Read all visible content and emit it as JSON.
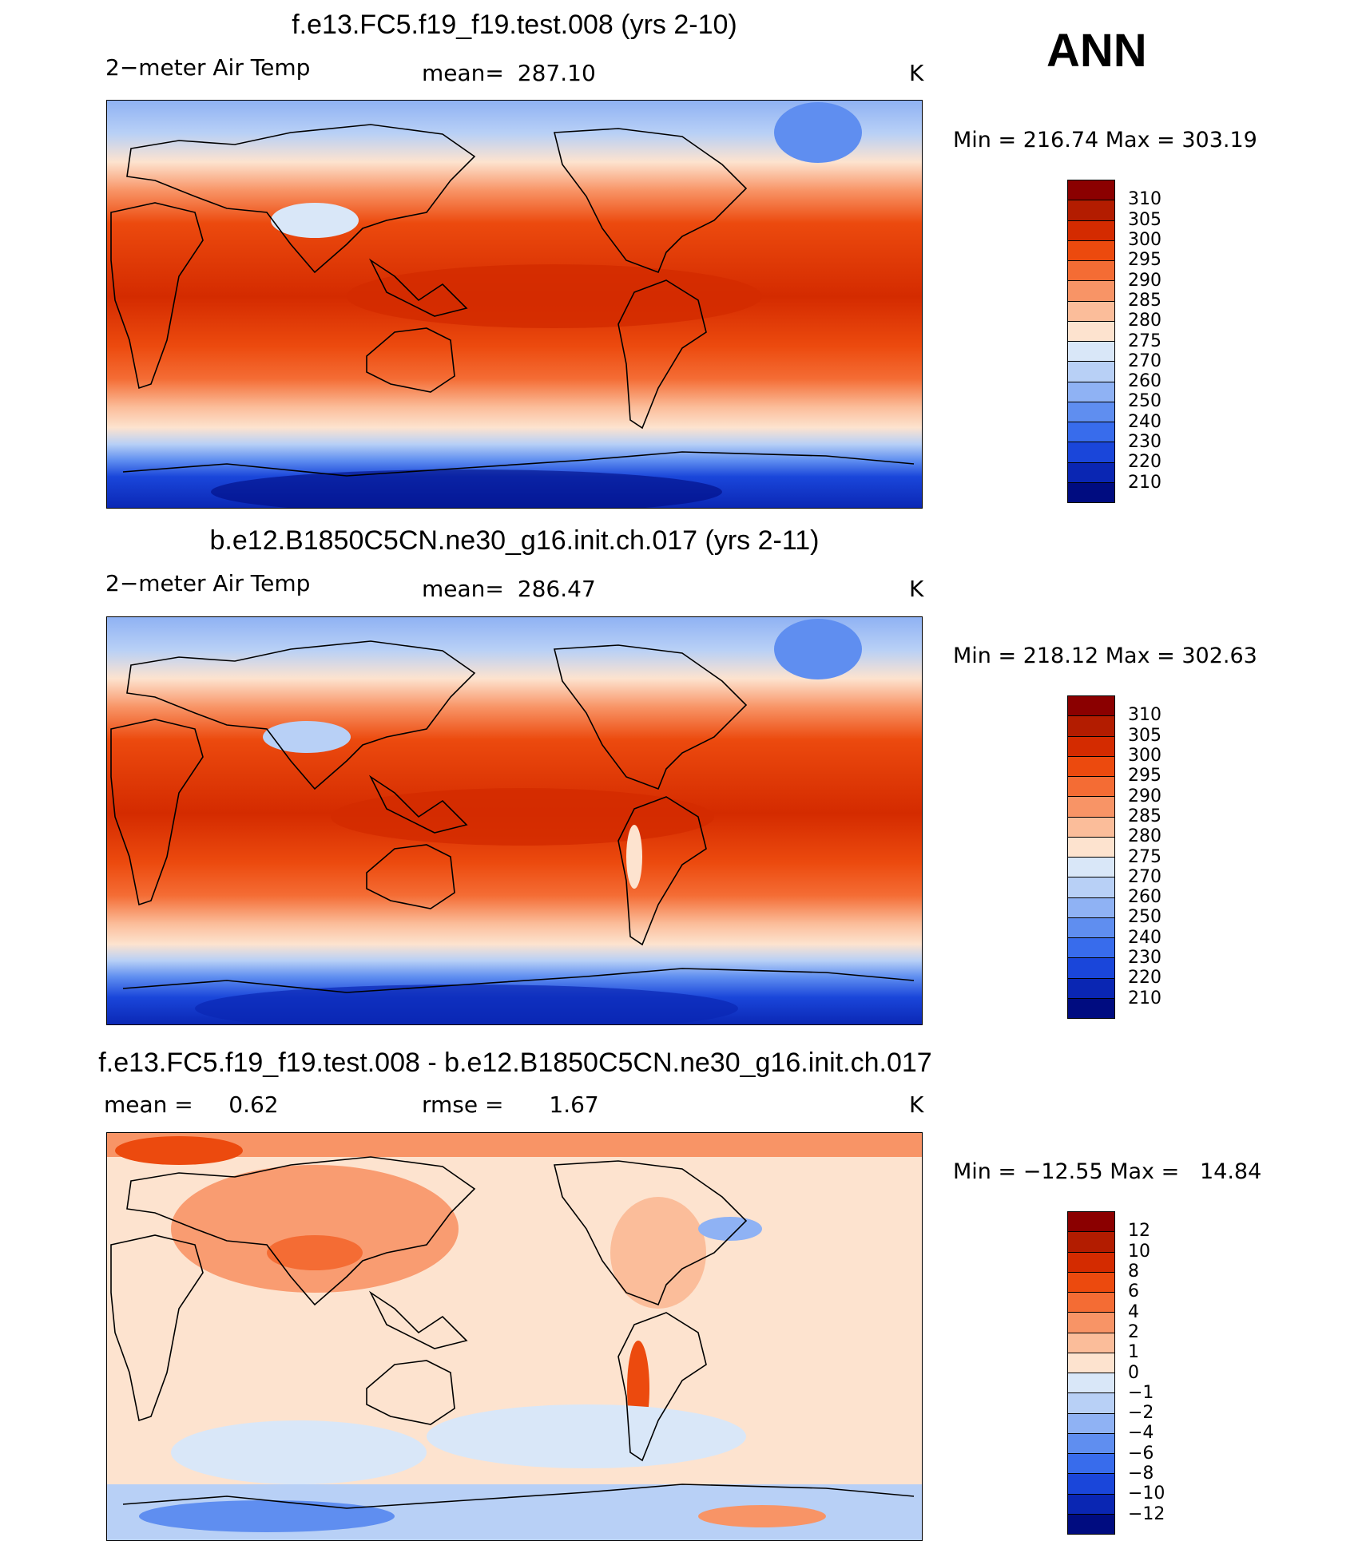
{
  "season": "ANN",
  "unit": "K",
  "panels": [
    {
      "title": "f.e13.FC5.f19_f19.test.008 (yrs 2-10)",
      "left_label": "2−meter Air Temp",
      "stat_label": "mean=",
      "stat_value": "287.10",
      "unit": "K",
      "minmax": "Min = 216.74 Max = 303.19",
      "levels": [
        "310",
        "305",
        "300",
        "295",
        "290",
        "285",
        "280",
        "275",
        "270",
        "260",
        "250",
        "240",
        "230",
        "220",
        "210"
      ],
      "colors": [
        "#8b0000",
        "#b31c00",
        "#d42b00",
        "#ec4a0e",
        "#f46c34",
        "#f89466",
        "#fbbd9a",
        "#fde3cf",
        "#d9e7f8",
        "#b8d0f6",
        "#8fb2f4",
        "#5f8ef0",
        "#386cec",
        "#1a46da",
        "#0a26b3",
        "#000c80"
      ]
    },
    {
      "title": "b.e12.B1850C5CN.ne30_g16.init.ch.017 (yrs 2-11)",
      "left_label": "2−meter Air Temp",
      "stat_label": "mean=",
      "stat_value": "286.47",
      "unit": "K",
      "minmax": "Min = 218.12 Max = 302.63",
      "levels": [
        "310",
        "305",
        "300",
        "295",
        "290",
        "285",
        "280",
        "275",
        "270",
        "260",
        "250",
        "240",
        "230",
        "220",
        "210"
      ],
      "colors": [
        "#8b0000",
        "#b31c00",
        "#d42b00",
        "#ec4a0e",
        "#f46c34",
        "#f89466",
        "#fbbd9a",
        "#fde3cf",
        "#d9e7f8",
        "#b8d0f6",
        "#8fb2f4",
        "#5f8ef0",
        "#386cec",
        "#1a46da",
        "#0a26b3",
        "#000c80"
      ]
    },
    {
      "title": "f.e13.FC5.f19_f19.test.008 - b.e12.B1850C5CN.ne30_g16.init.ch.017",
      "left_label": "mean =     0.62",
      "stat_label": "rmse =",
      "stat_value": "1.67",
      "unit": "K",
      "minmax": "Min = −12.55 Max =   14.84",
      "levels": [
        "12",
        "10",
        "8",
        "6",
        "4",
        "2",
        "1",
        "0",
        "−1",
        "−2",
        "−4",
        "−6",
        "−8",
        "−10",
        "−12"
      ],
      "colors": [
        "#8b0000",
        "#b31c00",
        "#d42b00",
        "#ec4a0e",
        "#f46c34",
        "#f89466",
        "#fbbd9a",
        "#fde3cf",
        "#d9e7f8",
        "#b8d0f6",
        "#8fb2f4",
        "#5f8ef0",
        "#386cec",
        "#1a46da",
        "#0a26b3",
        "#000c80"
      ]
    }
  ]
}
